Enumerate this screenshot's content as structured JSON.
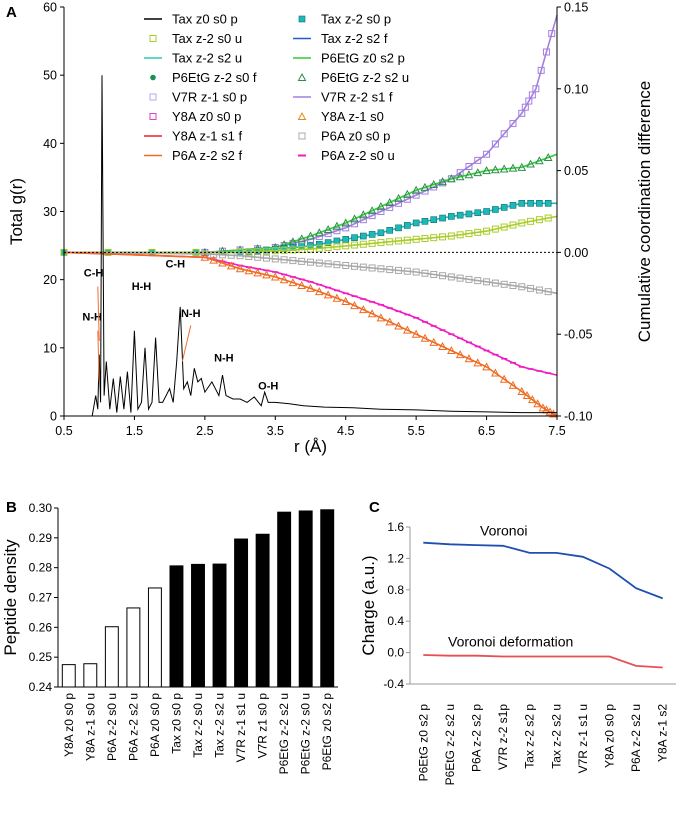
{
  "chart_data": [
    {
      "panel": "A",
      "type": "line",
      "xlabel": "r (Å)",
      "ylabel_left": "Total g(r)",
      "ylabel_right": "Cumulative coordination difference",
      "xlim": [
        0.5,
        7.5
      ],
      "ylim_left": [
        0,
        60
      ],
      "ylim_right": [
        -0.1,
        0.15
      ],
      "x_ticks": [
        "0.5",
        "1.5",
        "2.5",
        "3.5",
        "4.5",
        "5.5",
        "6.5",
        "7.5"
      ],
      "y_left_ticks": [
        "0",
        "10",
        "20",
        "30",
        "40",
        "50",
        "60"
      ],
      "y_right_ticks": [
        "-0.10",
        "-0.05",
        "0.00",
        "0.05",
        "0.10",
        "0.15"
      ],
      "peak_labels": [
        {
          "text": "N-H",
          "r": 0.9,
          "g": 14
        },
        {
          "text": "C-H",
          "r": 0.92,
          "g": 20.5
        },
        {
          "text": "H-H",
          "r": 1.6,
          "g": 18.5
        },
        {
          "text": "C-H",
          "r": 2.08,
          "g": 21.8
        },
        {
          "text": "N-H",
          "r": 2.3,
          "g": 14.5
        },
        {
          "text": "N-H",
          "r": 2.77,
          "g": 8
        },
        {
          "text": "O-H",
          "r": 3.4,
          "g": 3.9
        }
      ],
      "gr_series": {
        "name": "Tax z0 s0 p",
        "r": [
          0.5,
          0.9,
          0.95,
          0.98,
          1.0,
          1.02,
          1.04,
          1.07,
          1.1,
          1.15,
          1.2,
          1.25,
          1.3,
          1.35,
          1.4,
          1.45,
          1.5,
          1.55,
          1.6,
          1.65,
          1.7,
          1.75,
          1.8,
          1.85,
          1.9,
          1.95,
          2.0,
          2.05,
          2.1,
          2.15,
          2.2,
          2.25,
          2.3,
          2.35,
          2.4,
          2.45,
          2.5,
          2.6,
          2.7,
          2.75,
          2.8,
          2.9,
          3.0,
          3.1,
          3.2,
          3.3,
          3.35,
          3.4,
          3.5,
          3.7,
          3.9,
          4.2,
          4.6,
          5.0,
          5.5,
          6.0,
          6.5,
          7.0,
          7.5
        ],
        "g": [
          0,
          0,
          3,
          1,
          9,
          2,
          50,
          3,
          8,
          1,
          5.5,
          0.5,
          5.8,
          1,
          6.5,
          0.5,
          12.5,
          1,
          2,
          10,
          1,
          2,
          11.5,
          2,
          2,
          3,
          4,
          2,
          8,
          16,
          4,
          5,
          3,
          7,
          5,
          5.5,
          3.5,
          5,
          3,
          6,
          3,
          2.5,
          2.5,
          2,
          2.8,
          1.5,
          3.5,
          2,
          2,
          1.8,
          1.5,
          1.3,
          1.2,
          1,
          0.9,
          0.7,
          0.6,
          0.5,
          0.5
        ]
      },
      "legend": [
        {
          "name": "Tax z0 s0 p",
          "color": "#000000",
          "style": "line"
        },
        {
          "name": "Tax z-2 s0 p",
          "color": "#1fb8b8",
          "style": "filled-square"
        },
        {
          "name": "Tax z-2 s0 u",
          "color": "#a8cc28",
          "style": "open-square"
        },
        {
          "name": "Tax z-2 s2 f",
          "color": "#1f5fcc",
          "style": "line"
        },
        {
          "name": "Tax z-2 s2 u",
          "color": "#33c9b0",
          "style": "line"
        },
        {
          "name": "P6EtG z0 s2 p",
          "color": "#33cc33",
          "style": "line"
        },
        {
          "name": "P6EtG z-2 s0 f",
          "color": "#1a8f5a",
          "style": "dot"
        },
        {
          "name": "P6EtG z-2 s2 u",
          "color": "#2a8f4a",
          "style": "open-triangle"
        },
        {
          "name": "V7R z-1 s0 p",
          "color": "#b4a8ea",
          "style": "open-square"
        },
        {
          "name": "V7R z-2 s1 f",
          "color": "#a27ee0",
          "style": "line"
        },
        {
          "name": "Y8A z0 s0 p",
          "color": "#e040c0",
          "style": "open-square"
        },
        {
          "name": "Y8A z-1 s0",
          "color": "#e88a1a",
          "style": "open-triangle"
        },
        {
          "name": "Y8A z-1 s1 f",
          "color": "#e8202a",
          "style": "line"
        },
        {
          "name": "P6A z0 s0 p",
          "color": "#a8a8a8",
          "style": "open-square"
        },
        {
          "name": "P6A z-2 s2 f",
          "color": "#f06a20",
          "style": "line"
        },
        {
          "name": "P6A z-2 s0 u",
          "color": "#f01cc0",
          "style": "dash"
        }
      ],
      "ccd_series": [
        {
          "name": "V7R z-1 s0 p / V7R z-2 s1 f",
          "color": "#a27ee0",
          "r": [
            0.5,
            2.5,
            3.5,
            4.0,
            4.5,
            5.0,
            5.5,
            6.0,
            6.5,
            7.0,
            7.2,
            7.5
          ],
          "v": [
            0.0,
            0.0,
            0.003,
            0.008,
            0.015,
            0.025,
            0.035,
            0.045,
            0.06,
            0.085,
            0.1,
            0.145
          ]
        },
        {
          "name": "P6EtG z0 s2 p",
          "color": "#33cc33",
          "r": [
            0.5,
            2.5,
            3.5,
            4.0,
            4.5,
            5.0,
            5.5,
            6.0,
            6.5,
            7.0,
            7.5
          ],
          "v": [
            0.0,
            0.0,
            0.003,
            0.01,
            0.018,
            0.028,
            0.038,
            0.045,
            0.05,
            0.052,
            0.06
          ]
        },
        {
          "name": "Tax z-2 s0 p",
          "color": "#1fb8b8",
          "r": [
            0.5,
            3.0,
            3.5,
            4.0,
            4.5,
            5.0,
            5.5,
            6.0,
            6.5,
            7.0,
            7.5
          ],
          "v": [
            0.0,
            0.0,
            0.002,
            0.004,
            0.008,
            0.012,
            0.018,
            0.022,
            0.025,
            0.03,
            0.03
          ]
        },
        {
          "name": "Tax z-2 s0 u",
          "color": "#a8cc28",
          "r": [
            0.5,
            3.0,
            3.5,
            4.0,
            4.5,
            5.0,
            5.5,
            6.0,
            6.5,
            7.0,
            7.5
          ],
          "v": [
            0.0,
            0.0,
            0.001,
            0.002,
            0.004,
            0.006,
            0.008,
            0.01,
            0.013,
            0.018,
            0.022
          ]
        },
        {
          "name": "P6A z0 s0 p",
          "color": "#a8a8a8",
          "r": [
            0.5,
            2.5,
            3.0,
            3.5,
            4.0,
            4.5,
            5.0,
            5.5,
            6.0,
            6.5,
            7.0,
            7.5
          ],
          "v": [
            0.0,
            -0.001,
            -0.002,
            -0.004,
            -0.006,
            -0.008,
            -0.01,
            -0.012,
            -0.015,
            -0.018,
            -0.021,
            -0.025
          ]
        },
        {
          "name": "P6A z-2 s0 u",
          "color": "#f01cc0",
          "r": [
            0.5,
            2.5,
            3.0,
            3.5,
            4.0,
            4.5,
            5.0,
            5.5,
            6.0,
            6.5,
            7.0,
            7.5
          ],
          "v": [
            0.0,
            -0.003,
            -0.008,
            -0.012,
            -0.018,
            -0.025,
            -0.032,
            -0.04,
            -0.05,
            -0.06,
            -0.07,
            -0.075
          ]
        },
        {
          "name": "Y8A z-1 s0 / P6A z-2 s2 f",
          "color": "#f06a20",
          "r": [
            0.5,
            2.5,
            3.0,
            3.5,
            4.0,
            4.5,
            5.0,
            5.5,
            6.0,
            6.5,
            7.0,
            7.3,
            7.5
          ],
          "v": [
            0.0,
            -0.003,
            -0.01,
            -0.015,
            -0.022,
            -0.03,
            -0.04,
            -0.05,
            -0.06,
            -0.07,
            -0.085,
            -0.095,
            -0.1
          ]
        }
      ]
    },
    {
      "panel": "B",
      "type": "bar",
      "ylabel": "Peptide density",
      "ylim": [
        0.24,
        0.3
      ],
      "y_ticks": [
        "0.24",
        "0.25",
        "0.26",
        "0.27",
        "0.28",
        "0.29",
        "0.30"
      ],
      "categories": [
        "Y8A z0 s0 p",
        "Y8A z-1 s0 u",
        "P6A z-2 s0 u",
        "P6A z-2 s2 u",
        "P6A z0 s0 p",
        "Tax z0 s0 p",
        "Tax z-2 s0 u",
        "Tax z-2 s2 u",
        "V7R z-1 s1 u",
        "V7R z1 s0 p",
        "P6EtG z-2 s2 u",
        "P6EtG z-2 s0 u",
        "P6EtG z0 s2 p"
      ],
      "values": [
        0.2475,
        0.2478,
        0.2602,
        0.2665,
        0.2732,
        0.2806,
        0.2811,
        0.2812,
        0.2896,
        0.2912,
        0.2986,
        0.299,
        0.2994
      ],
      "fills": [
        "#ffffff",
        "#ffffff",
        "#ffffff",
        "#ffffff",
        "#ffffff",
        "#000000",
        "#000000",
        "#000000",
        "#000000",
        "#000000",
        "#000000",
        "#000000",
        "#000000"
      ]
    },
    {
      "panel": "C",
      "type": "line",
      "ylabel": "Charge (a.u.)",
      "ylim": [
        -0.4,
        1.6
      ],
      "y_ticks": [
        "-0.4",
        "0.0",
        "0.4",
        "0.8",
        "1.2",
        "1.6"
      ],
      "categories": [
        "P6EtG z0 s2 p",
        "P6EtG z-2 s2 u",
        "P6A z-2 s2 p",
        "V7R z-2 s1p",
        "Tax z-2 s2 p",
        "Tax z-2 s2 u",
        "V7R z-1 s1 u",
        "Y8A z0 s0 p",
        "P6A z-2 s2 u",
        "Y8A z-1 s2"
      ],
      "series": [
        {
          "name": "Voronoi",
          "color": "#1f4fb0",
          "values": [
            1.4,
            1.38,
            1.37,
            1.36,
            1.27,
            1.27,
            1.22,
            1.07,
            0.82,
            0.69
          ]
        },
        {
          "name": "Voronoi deformation",
          "color": "#e85050",
          "values": [
            -0.03,
            -0.04,
            -0.04,
            -0.05,
            -0.05,
            -0.05,
            -0.05,
            -0.05,
            -0.17,
            -0.19
          ]
        }
      ]
    }
  ],
  "panels": {
    "a": "A",
    "b": "B",
    "c": "C"
  }
}
